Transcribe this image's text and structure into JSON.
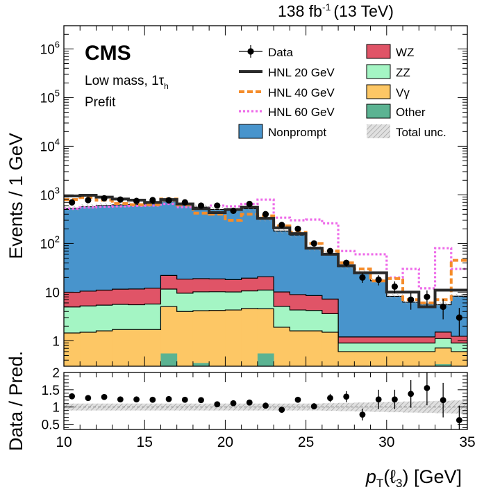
{
  "header": {
    "lumi": "138 fb",
    "lumi_exp": "-1",
    "energy": "(13 TeV)",
    "experiment": "CMS",
    "region_prefix": "Low mass, 1",
    "region_tau": "τ",
    "region_sub": "h",
    "stage": "Prefit"
  },
  "axes": {
    "ylabel_top": "Events / 1 GeV",
    "ylabel_bottom": "Data / Pred.",
    "xlabel_main": "p",
    "xlabel_sub": "T",
    "xlabel_arg": "(ℓ",
    "xlabel_arg_sub": "3",
    "xlabel_unit": ") [GeV]"
  },
  "legend": {
    "data": "Data",
    "hnl20": "HNL 20 GeV",
    "hnl40": "HNL 40 GeV",
    "hnl60": "HNL 60 GeV",
    "nonprompt": "Nonprompt",
    "wz": "WZ",
    "zz": "ZZ",
    "vgamma": "Vγ",
    "other": "Other",
    "unc": "Total unc."
  },
  "chart_data": [
    {
      "type": "area",
      "subtype": "stacked-histogram",
      "xlim": [
        10,
        35
      ],
      "ylim": [
        0.3,
        3000000
      ],
      "yscale": "log",
      "x_ticks": [
        10,
        15,
        20,
        25,
        30,
        35
      ],
      "y_tick_labels": [
        "1",
        "10",
        "10^2",
        "10^3",
        "10^4",
        "10^5",
        "10^6"
      ],
      "bin_edges": [
        10,
        11,
        12,
        13,
        14,
        15,
        16,
        17,
        18,
        19,
        20,
        21,
        22,
        23,
        24,
        25,
        26,
        27,
        28,
        29,
        30,
        31,
        32,
        33,
        34,
        35
      ],
      "stack_order": [
        "Other",
        "Vγ",
        "ZZ",
        "WZ",
        "Nonprompt"
      ],
      "stack": {
        "Other": [
          0.3,
          0.3,
          0.3,
          0.3,
          0.3,
          0.3,
          0.55,
          0.3,
          0.35,
          0.3,
          0.3,
          0.3,
          0.55,
          0.3,
          0.3,
          0.3,
          0.3,
          0.3,
          0.3,
          0.3,
          0.3,
          0.3,
          0.3,
          0.33,
          0.3
        ],
        "Vγ": [
          1.15,
          1.2,
          1.3,
          1.4,
          1.4,
          1.4,
          4.5,
          3.7,
          3.8,
          3.9,
          4.0,
          4.3,
          4.0,
          1.6,
          1.3,
          1.3,
          1.2,
          0.3,
          0.3,
          0.3,
          0.3,
          0.3,
          0.3,
          0.38,
          0.3
        ],
        "ZZ": [
          3.5,
          3.7,
          3.8,
          3.9,
          3.8,
          4.0,
          6.5,
          5.5,
          6.0,
          6.0,
          5.8,
          6.0,
          6.5,
          3.2,
          2.7,
          2.6,
          2.1,
          0.3,
          0.3,
          0.3,
          0.3,
          0.3,
          0.3,
          0.4,
          0.3
        ],
        "WZ": [
          5.0,
          5.3,
          5.6,
          5.9,
          6.1,
          6.4,
          10.5,
          9.0,
          8.8,
          8.5,
          8.0,
          8.8,
          9.7,
          5.0,
          4.6,
          4.3,
          3.6,
          0.3,
          0.3,
          0.3,
          0.3,
          0.3,
          0.3,
          0.4,
          0.34
        ],
        "Nonprompt": [
          520,
          560,
          590,
          610,
          620,
          640,
          700,
          600,
          540,
          480,
          470,
          500,
          300,
          170,
          140,
          70,
          55,
          32,
          24,
          16,
          7,
          5,
          4.5,
          4,
          7
        ]
      },
      "hnl_20": [
        950,
        980,
        900,
        820,
        780,
        700,
        800,
        650,
        520,
        430,
        500,
        560,
        330,
        210,
        160,
        80,
        60,
        35,
        25,
        25,
        10,
        10,
        5,
        11,
        11
      ],
      "hnl_40": [
        800,
        880,
        780,
        660,
        630,
        630,
        820,
        620,
        420,
        400,
        300,
        400,
        370,
        230,
        170,
        100,
        70,
        40,
        30,
        17,
        19,
        7,
        6,
        7,
        45
      ],
      "hnl_60": [
        520,
        550,
        570,
        580,
        590,
        600,
        650,
        560,
        520,
        600,
        580,
        650,
        800,
        340,
        300,
        310,
        260,
        70,
        60,
        60,
        20,
        30,
        12,
        80,
        30
      ],
      "data": {
        "x": [
          10.5,
          11.5,
          12.5,
          13.5,
          14.5,
          15.5,
          16.5,
          17.5,
          18.5,
          19.5,
          20.5,
          21.5,
          22.5,
          23.5,
          24.5,
          25.5,
          26.5,
          27.5,
          28.5,
          29.5,
          30.5,
          31.5,
          32.5,
          33.5,
          34.5
        ],
        "y": [
          700,
          780,
          850,
          800,
          750,
          780,
          770,
          700,
          600,
          600,
          470,
          650,
          400,
          240,
          200,
          100,
          70,
          40,
          20,
          18,
          13,
          7,
          8,
          5,
          3
        ]
      }
    },
    {
      "type": "scatter",
      "subtype": "ratio",
      "xlim": [
        10,
        35
      ],
      "ylim": [
        0.35,
        2.0
      ],
      "xlabel": "p_T(ℓ_3) [GeV]",
      "ylabel": "Data / Pred.",
      "y_ticks": [
        0.5,
        1,
        1.5,
        2
      ],
      "y_tick_labels": [
        "0.5",
        "1",
        "1.5",
        "2"
      ],
      "x_ticks": [
        10,
        15,
        20,
        25,
        30,
        35
      ],
      "reference_line": 1,
      "points": [
        {
          "x": 10.5,
          "y": 1.31,
          "err": 0.05
        },
        {
          "x": 11.5,
          "y": 1.26,
          "err": 0.05
        },
        {
          "x": 12.5,
          "y": 1.29,
          "err": 0.05
        },
        {
          "x": 13.5,
          "y": 1.22,
          "err": 0.05
        },
        {
          "x": 14.5,
          "y": 1.22,
          "err": 0.05
        },
        {
          "x": 15.5,
          "y": 1.21,
          "err": 0.05
        },
        {
          "x": 16.5,
          "y": 1.23,
          "err": 0.05
        },
        {
          "x": 17.5,
          "y": 1.21,
          "err": 0.05
        },
        {
          "x": 18.5,
          "y": 1.2,
          "err": 0.05
        },
        {
          "x": 19.5,
          "y": 1.08,
          "err": 0.05
        },
        {
          "x": 20.5,
          "y": 1.11,
          "err": 0.05
        },
        {
          "x": 21.5,
          "y": 1.13,
          "err": 0.05
        },
        {
          "x": 22.5,
          "y": 1.04,
          "err": 0.06
        },
        {
          "x": 23.5,
          "y": 0.92,
          "err": 0.07
        },
        {
          "x": 24.5,
          "y": 1.21,
          "err": 0.08
        },
        {
          "x": 25.5,
          "y": 1.02,
          "err": 0.09
        },
        {
          "x": 26.5,
          "y": 1.26,
          "err": 0.12
        },
        {
          "x": 27.5,
          "y": 1.3,
          "err": 0.16
        },
        {
          "x": 28.5,
          "y": 0.78,
          "err": 0.17
        },
        {
          "x": 29.5,
          "y": 1.22,
          "err": 0.28
        },
        {
          "x": 30.5,
          "y": 1.22,
          "err": 0.28
        },
        {
          "x": 31.5,
          "y": 1.38,
          "err": 0.4
        },
        {
          "x": 32.5,
          "y": 1.55,
          "err": 0.5
        },
        {
          "x": 33.5,
          "y": 1.2,
          "err": 0.5
        },
        {
          "x": 34.5,
          "y": 0.62,
          "err": 0.42
        }
      ]
    }
  ],
  "colors": {
    "nonprompt": "#4894cc",
    "wz": "#e05467",
    "zz": "#a4f5c4",
    "vgamma": "#fdc765",
    "other": "#5bb392",
    "hnl20": "#2a2a2a",
    "hnl40": "#f58c2a",
    "hnl60": "#ee6ae9",
    "data": "#000000"
  }
}
